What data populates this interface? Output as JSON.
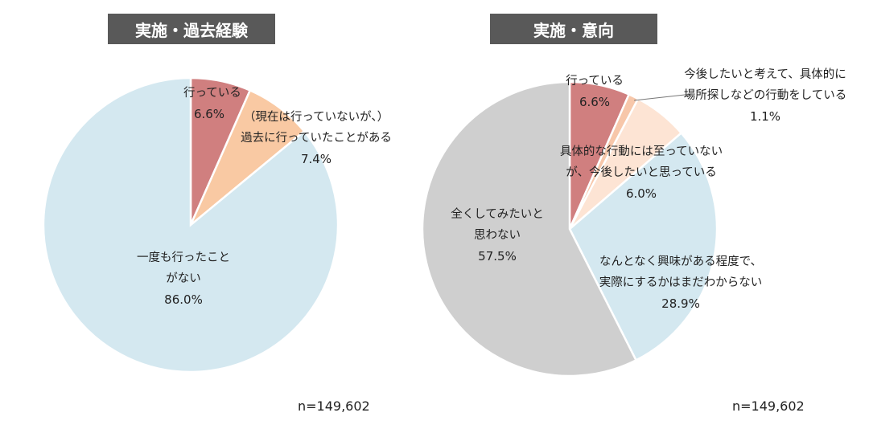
{
  "chart_data": [
    {
      "type": "pie",
      "title": "実施・過去経験",
      "n_label": "n=149,602",
      "slices": [
        {
          "lines": [
            "行っている",
            "6.6%"
          ],
          "value": 6.6,
          "color": "#d07f7f"
        },
        {
          "lines": [
            "（現在は行っていないが、）",
            "過去に行っていたことがある",
            "7.4%"
          ],
          "value": 7.4,
          "color": "#f9c9a3"
        },
        {
          "lines": [
            "一度も行ったこと",
            "がない",
            "86.0%"
          ],
          "value": 86.0,
          "color": "#d4e8f0"
        }
      ]
    },
    {
      "type": "pie",
      "title": "実施・意向",
      "n_label": "n=149,602",
      "slices": [
        {
          "lines": [
            "行っている",
            "6.6%"
          ],
          "value": 6.6,
          "color": "#d07f7f"
        },
        {
          "lines": [
            "今後したいと考えて、具体的に",
            "場所探しなどの行動をしている",
            "1.1%"
          ],
          "value": 1.1,
          "color": "#f7c7aa"
        },
        {
          "lines": [
            "具体的な行動には至っていない",
            "が、今後したいと思っている",
            "6.0%"
          ],
          "value": 6.0,
          "color": "#fde4d4"
        },
        {
          "lines": [
            "なんとなく興味がある程度で、",
            "実際にするかはまだわからない",
            "28.9%"
          ],
          "value": 28.9,
          "color": "#d4e8f0"
        },
        {
          "lines": [
            "全くしてみたいと",
            "思わない",
            "57.5%"
          ],
          "value": 57.5,
          "color": "#cfcfcf"
        }
      ]
    }
  ]
}
